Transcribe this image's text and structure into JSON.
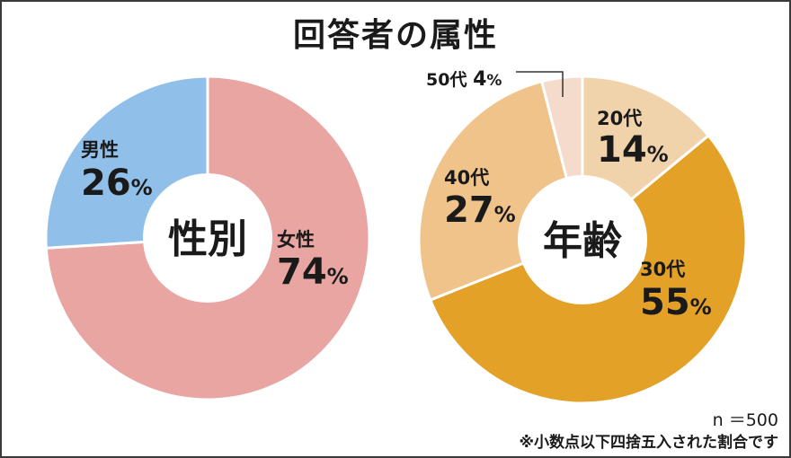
{
  "title": "回答者の属性",
  "chart_data": [
    {
      "type": "pie",
      "center_label": "性別",
      "slices": [
        {
          "name": "女性",
          "value": 74,
          "value_label": "74",
          "unit": "%",
          "color": "#e8a5a2"
        },
        {
          "name": "男性",
          "value": 26,
          "value_label": "26",
          "unit": "%",
          "color": "#90c0ea"
        }
      ]
    },
    {
      "type": "pie",
      "center_label": "年齢",
      "slices": [
        {
          "name": "20代",
          "value": 14,
          "value_label": "14",
          "unit": "%",
          "color": "#f0d3ab"
        },
        {
          "name": "30代",
          "value": 55,
          "value_label": "55",
          "unit": "%",
          "color": "#e3a128"
        },
        {
          "name": "40代",
          "value": 27,
          "value_label": "27",
          "unit": "%",
          "color": "#efc38a"
        },
        {
          "name": "50代",
          "value": 4,
          "value_label": "4",
          "unit": "%",
          "color": "#f5dbcc"
        }
      ]
    }
  ],
  "sample_size": "n ＝500",
  "rounding_note": "※小数点以下四捨五入された割合です"
}
